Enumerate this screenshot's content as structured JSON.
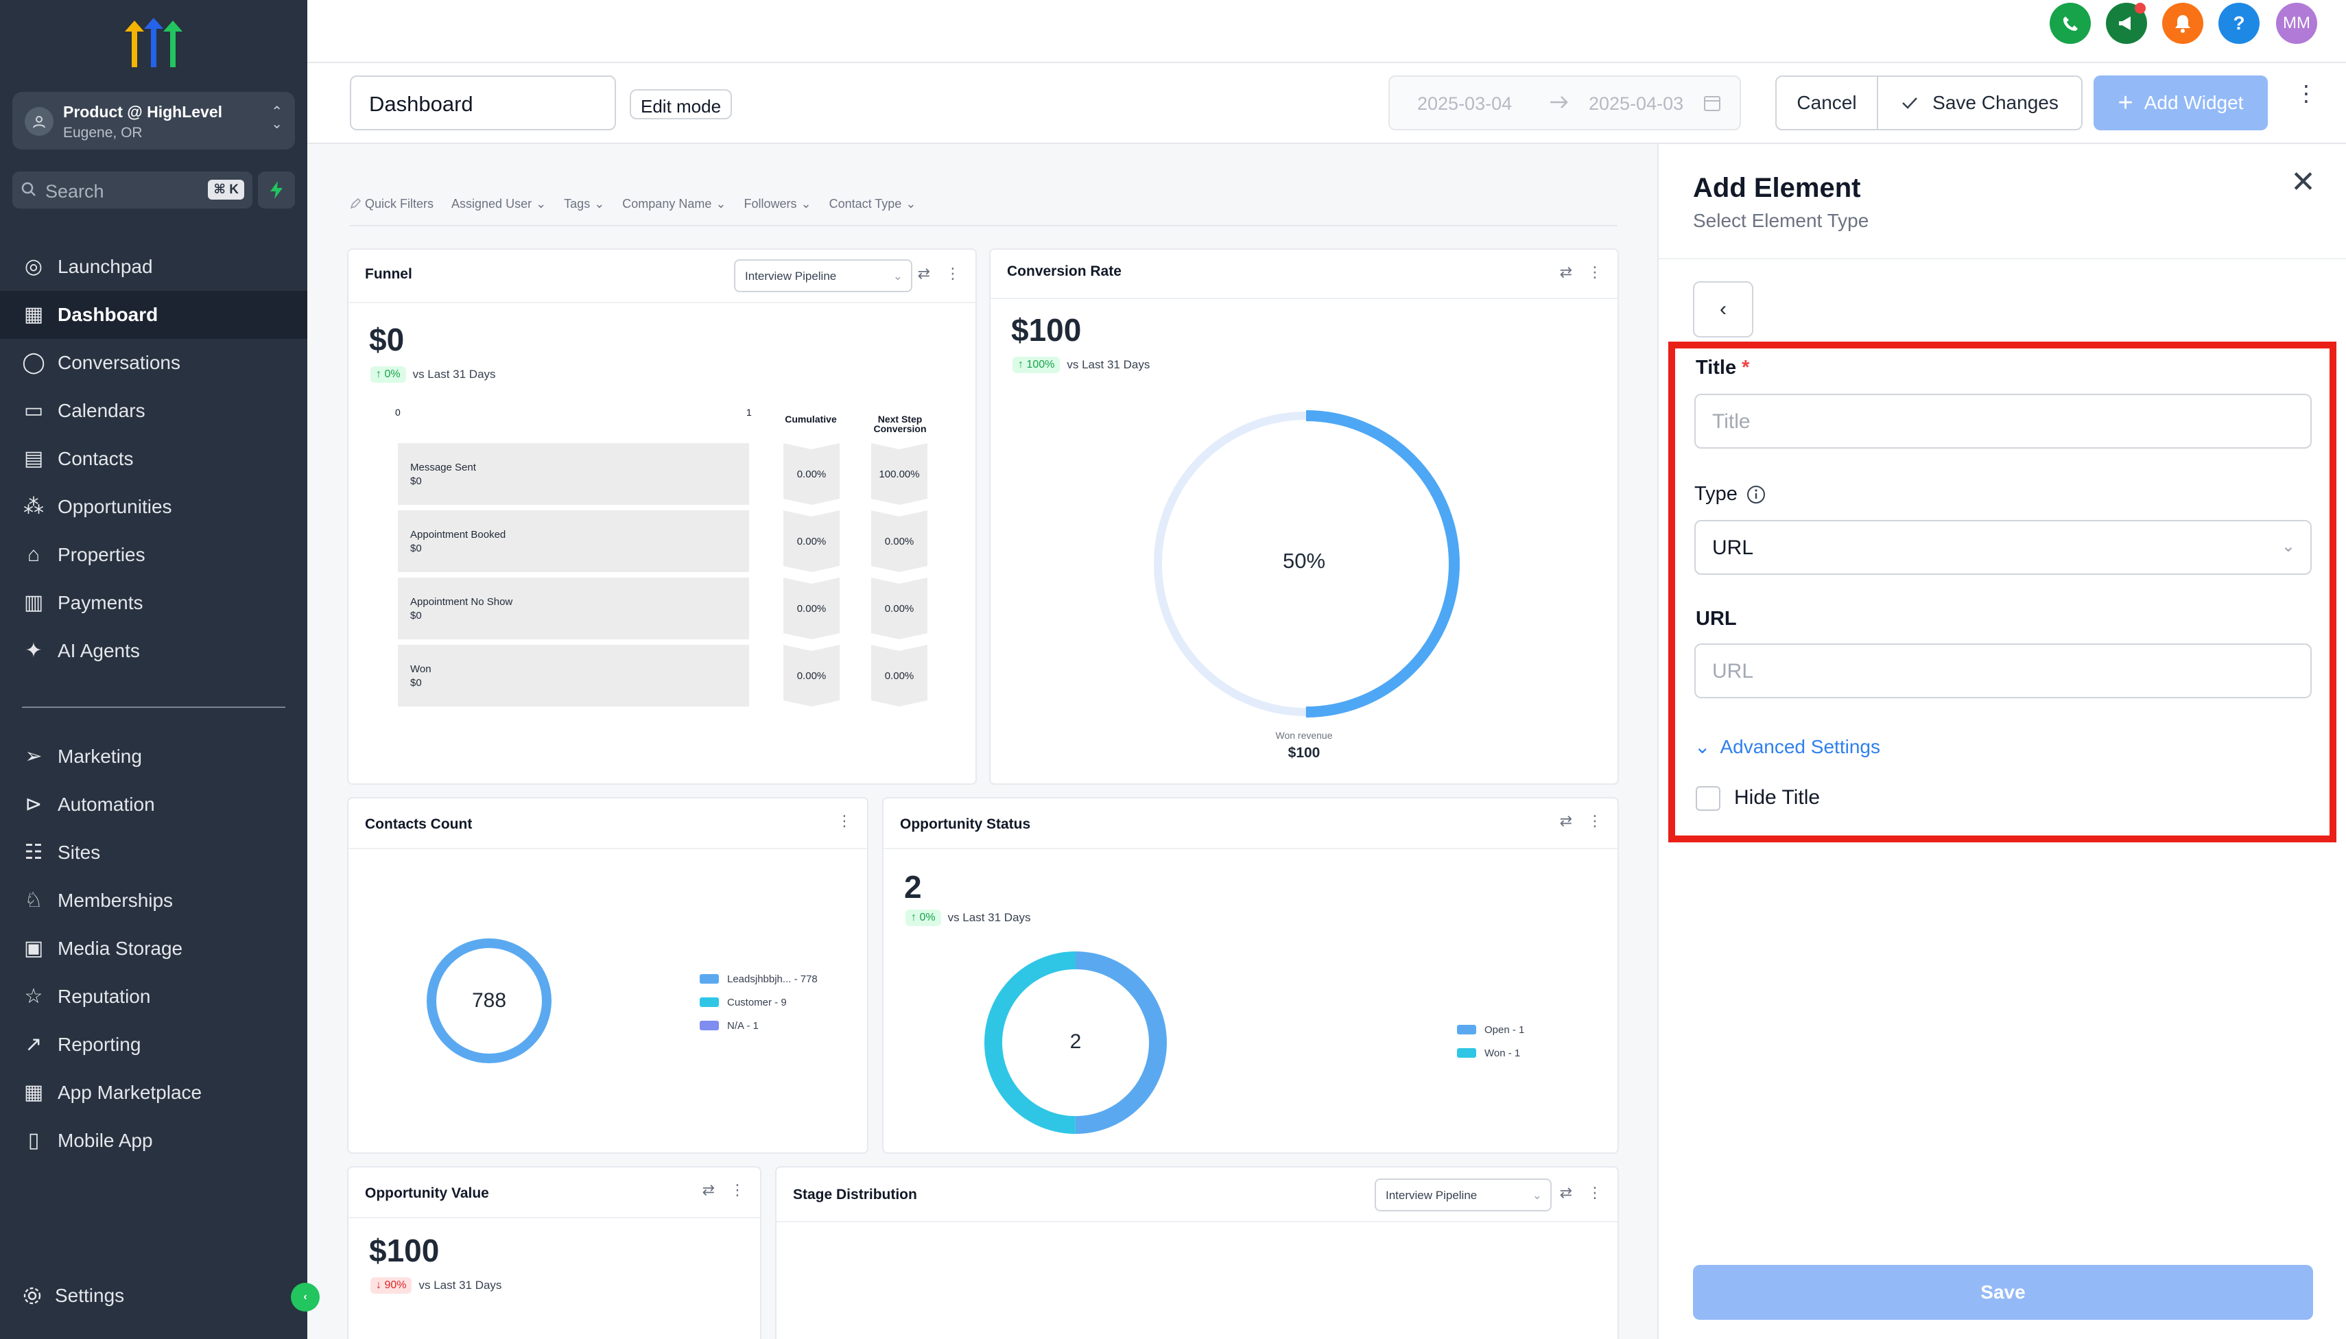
{
  "sidebar": {
    "account": {
      "name": "Product @ HighLevel",
      "location": "Eugene, OR"
    },
    "search": {
      "placeholder": "Search",
      "shortcut": "⌘ K"
    },
    "items": [
      {
        "label": "Launchpad",
        "icon": "launchpad-icon"
      },
      {
        "label": "Dashboard",
        "icon": "dashboard-icon",
        "active": true
      },
      {
        "label": "Conversations",
        "icon": "chat-icon"
      },
      {
        "label": "Calendars",
        "icon": "calendar-icon"
      },
      {
        "label": "Contacts",
        "icon": "contacts-icon"
      },
      {
        "label": "Opportunities",
        "icon": "opportunities-icon"
      },
      {
        "label": "Properties",
        "icon": "home-icon"
      },
      {
        "label": "Payments",
        "icon": "payments-icon"
      },
      {
        "label": "AI Agents",
        "icon": "sparkle-icon"
      },
      {
        "label": "Marketing",
        "icon": "send-icon"
      },
      {
        "label": "Automation",
        "icon": "automation-icon"
      },
      {
        "label": "Sites",
        "icon": "sites-icon"
      },
      {
        "label": "Memberships",
        "icon": "memberships-icon"
      },
      {
        "label": "Media Storage",
        "icon": "media-icon"
      },
      {
        "label": "Reputation",
        "icon": "star-icon"
      },
      {
        "label": "Reporting",
        "icon": "trend-icon"
      },
      {
        "label": "App Marketplace",
        "icon": "grid-icon"
      },
      {
        "label": "Mobile App",
        "icon": "mobile-icon"
      }
    ],
    "settings": "Settings"
  },
  "topbar": {
    "avatar_initials": "MM",
    "colors": {
      "phone": "#16a34a",
      "announce": "#15803d",
      "bell": "#f97316",
      "help": "#1e88e5",
      "avatar": "#b07ad6"
    }
  },
  "toolbar": {
    "dashboard_name": "Dashboard",
    "edit_mode": "Edit mode",
    "date_start": "2025-03-04",
    "date_end": "2025-04-03",
    "cancel": "Cancel",
    "save_changes": "Save Changes",
    "add_widget": "Add Widget"
  },
  "filters": [
    "Quick Filters",
    "Assigned User",
    "Tags",
    "Company Name",
    "Followers",
    "Contact Type"
  ],
  "widgets": {
    "funnel": {
      "title": "Funnel",
      "pipeline": "Interview Pipeline",
      "value": "$0",
      "delta": "0%",
      "delta_label": "vs Last 31 Days",
      "axis_min": "0",
      "axis_max": "1",
      "col_cumulative": "Cumulative",
      "col_next": "Next Step Conversion",
      "stages": [
        {
          "name": "Message Sent",
          "value": "$0",
          "cumulative": "0.00%",
          "next": "100.00%"
        },
        {
          "name": "Appointment Booked",
          "value": "$0",
          "cumulative": "0.00%",
          "next": "0.00%"
        },
        {
          "name": "Appointment No Show",
          "value": "$0",
          "cumulative": "0.00%",
          "next": "0.00%"
        },
        {
          "name": "Won",
          "value": "$0",
          "cumulative": "0.00%",
          "next": "0.00%"
        }
      ]
    },
    "conversion": {
      "title": "Conversion Rate",
      "value": "$100",
      "delta": "100%",
      "delta_label": "vs Last 31 Days",
      "percent_label": "50%",
      "percent": 0.5,
      "footer_label": "Won revenue",
      "footer_value": "$100"
    },
    "contacts": {
      "title": "Contacts Count",
      "total": "788",
      "legend": [
        {
          "label": "Leadsjhbbjh... - 778",
          "color": "#5aa9f0"
        },
        {
          "label": "Customer - 9",
          "color": "#2fc6e6"
        },
        {
          "label": "N/A - 1",
          "color": "#7f8cf0"
        }
      ]
    },
    "opp_status": {
      "title": "Opportunity Status",
      "value": "2",
      "delta": "0%",
      "delta_label": "vs Last 31 Days",
      "center": "2",
      "legend": [
        {
          "label": "Open - 1",
          "color": "#5aa9f0"
        },
        {
          "label": "Won - 1",
          "color": "#2fc6e6"
        }
      ]
    },
    "opp_value": {
      "title": "Opportunity Value",
      "value": "$100",
      "delta": "90%",
      "delta_label": "vs Last 31 Days"
    },
    "stage_dist": {
      "title": "Stage Distribution",
      "pipeline": "Interview Pipeline"
    }
  },
  "panel": {
    "title": "Add Element",
    "subtitle": "Select Element Type",
    "title_label": "Title",
    "title_placeholder": "Title",
    "type_label": "Type",
    "type_value": "URL",
    "url_label": "URL",
    "url_placeholder": "URL",
    "advanced": "Advanced Settings",
    "hide_title": "Hide Title",
    "save": "Save",
    "highlight_color": "#ea1f18"
  }
}
